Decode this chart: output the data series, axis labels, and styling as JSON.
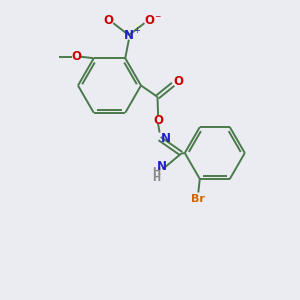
{
  "background_color": "#eaecf2",
  "bond_color": "#4a7a4a",
  "text_colors": {
    "O": "#cc0000",
    "N": "#2222cc",
    "Br": "#cc6600",
    "C": "#4a7a4a",
    "H": "#888888"
  },
  "figsize": [
    3.0,
    3.0
  ],
  "dpi": 100
}
